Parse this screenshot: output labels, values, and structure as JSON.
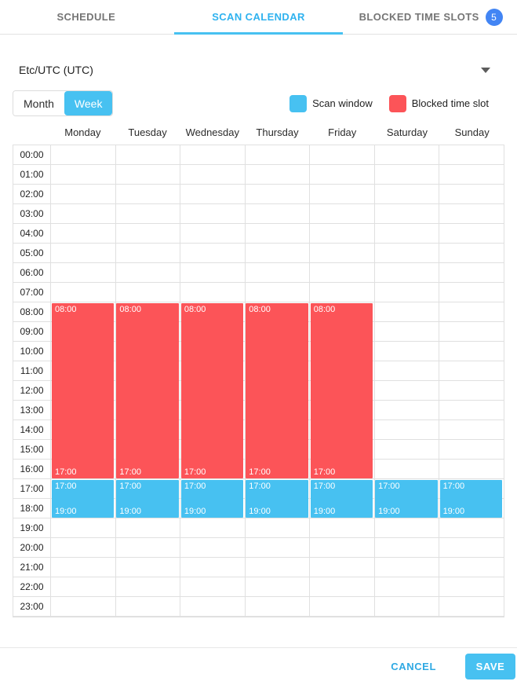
{
  "tabs": [
    {
      "label": "SCHEDULE",
      "active": false
    },
    {
      "label": "SCAN CALENDAR",
      "active": true
    },
    {
      "label": "BLOCKED TIME SLOTS",
      "active": false,
      "badge": "5"
    }
  ],
  "timezone": {
    "value": "Etc/UTC (UTC)"
  },
  "view_toggle": {
    "month_label": "Month",
    "week_label": "Week",
    "selected": "Week"
  },
  "legend": {
    "scan": {
      "label": "Scan window",
      "color": "#47c1f1"
    },
    "blocked": {
      "label": "Blocked time slot",
      "color": "#fc5458"
    }
  },
  "calendar": {
    "days": [
      "Monday",
      "Tuesday",
      "Wednesday",
      "Thursday",
      "Friday",
      "Saturday",
      "Sunday"
    ],
    "hours": [
      "00:00",
      "01:00",
      "02:00",
      "03:00",
      "04:00",
      "05:00",
      "06:00",
      "07:00",
      "08:00",
      "09:00",
      "10:00",
      "11:00",
      "12:00",
      "13:00",
      "14:00",
      "15:00",
      "16:00",
      "17:00",
      "18:00",
      "19:00",
      "20:00",
      "21:00",
      "22:00",
      "23:00"
    ],
    "events": [
      {
        "type": "blocked",
        "day": 0,
        "start": "08:00",
        "end": "17:00"
      },
      {
        "type": "blocked",
        "day": 1,
        "start": "08:00",
        "end": "17:00"
      },
      {
        "type": "blocked",
        "day": 2,
        "start": "08:00",
        "end": "17:00"
      },
      {
        "type": "blocked",
        "day": 3,
        "start": "08:00",
        "end": "17:00"
      },
      {
        "type": "blocked",
        "day": 4,
        "start": "08:00",
        "end": "17:00"
      },
      {
        "type": "scan",
        "day": 0,
        "start": "17:00",
        "end": "19:00"
      },
      {
        "type": "scan",
        "day": 1,
        "start": "17:00",
        "end": "19:00"
      },
      {
        "type": "scan",
        "day": 2,
        "start": "17:00",
        "end": "19:00"
      },
      {
        "type": "scan",
        "day": 3,
        "start": "17:00",
        "end": "19:00"
      },
      {
        "type": "scan",
        "day": 4,
        "start": "17:00",
        "end": "19:00"
      },
      {
        "type": "scan",
        "day": 5,
        "start": "17:00",
        "end": "19:00"
      },
      {
        "type": "scan",
        "day": 6,
        "start": "17:00",
        "end": "19:00"
      }
    ]
  },
  "footer": {
    "cancel_label": "CANCEL",
    "save_label": "SAVE"
  }
}
